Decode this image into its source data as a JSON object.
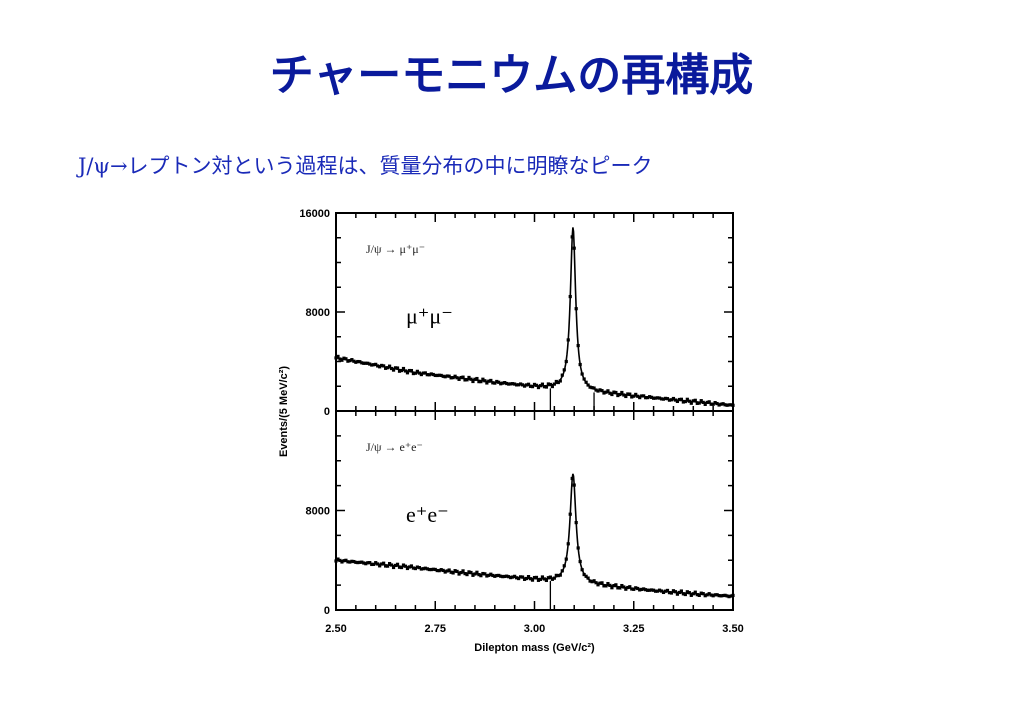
{
  "slide": {
    "title": "チャーモニウムの再構成",
    "subtitle": "J/ψ→レプトン対という過程は、質量分布の中に明瞭なピーク"
  },
  "colors": {
    "title": "#0a1a9c",
    "subtitle": "#1a2ab8",
    "data": "#000000"
  },
  "chart_data": {
    "type": "line",
    "xlabel": "Dilepton mass (GeV/c²)",
    "ylabel": "Events/(5 MeV/c²)",
    "xlim": [
      2.5,
      3.5
    ],
    "x_ticks": [
      "2.50",
      "2.75",
      "3.00",
      "3.25",
      "3.50"
    ],
    "legend": "none",
    "grid": false,
    "panels": [
      {
        "name": "mumu",
        "inset_label": "J/ψ → μ⁺μ⁻",
        "channel_label": "μ⁺μ⁻",
        "ylim": [
          0,
          16000
        ],
        "y_ticks": [
          "16000",
          "8000",
          "0"
        ],
        "signal": {
          "mass": 3.097,
          "peak": 13200,
          "width": 0.008
        },
        "background": [
          {
            "x": 2.5,
            "y": 4300
          },
          {
            "x": 2.6,
            "y": 3700
          },
          {
            "x": 2.7,
            "y": 3100
          },
          {
            "x": 2.8,
            "y": 2700
          },
          {
            "x": 2.9,
            "y": 2300
          },
          {
            "x": 3.0,
            "y": 1950
          },
          {
            "x": 3.1,
            "y": 1650
          },
          {
            "x": 3.2,
            "y": 1350
          },
          {
            "x": 3.3,
            "y": 1050
          },
          {
            "x": 3.4,
            "y": 750
          },
          {
            "x": 3.5,
            "y": 450
          }
        ],
        "markers": [
          3.04,
          3.15
        ]
      },
      {
        "name": "ee",
        "inset_label": "J/ψ → e⁺e⁻",
        "channel_label": "e⁺e⁻",
        "ylim": [
          0,
          16000
        ],
        "y_ticks": [
          "8000",
          "0"
        ],
        "signal": {
          "mass": 3.097,
          "peak": 8800,
          "width": 0.009
        },
        "background": [
          {
            "x": 2.5,
            "y": 4000
          },
          {
            "x": 2.6,
            "y": 3700
          },
          {
            "x": 2.7,
            "y": 3400
          },
          {
            "x": 2.8,
            "y": 3050
          },
          {
            "x": 2.9,
            "y": 2750
          },
          {
            "x": 3.0,
            "y": 2450
          },
          {
            "x": 3.1,
            "y": 2150
          },
          {
            "x": 3.2,
            "y": 1850
          },
          {
            "x": 3.3,
            "y": 1550
          },
          {
            "x": 3.4,
            "y": 1300
          },
          {
            "x": 3.5,
            "y": 1100
          }
        ],
        "markers": [
          3.04
        ]
      }
    ]
  }
}
